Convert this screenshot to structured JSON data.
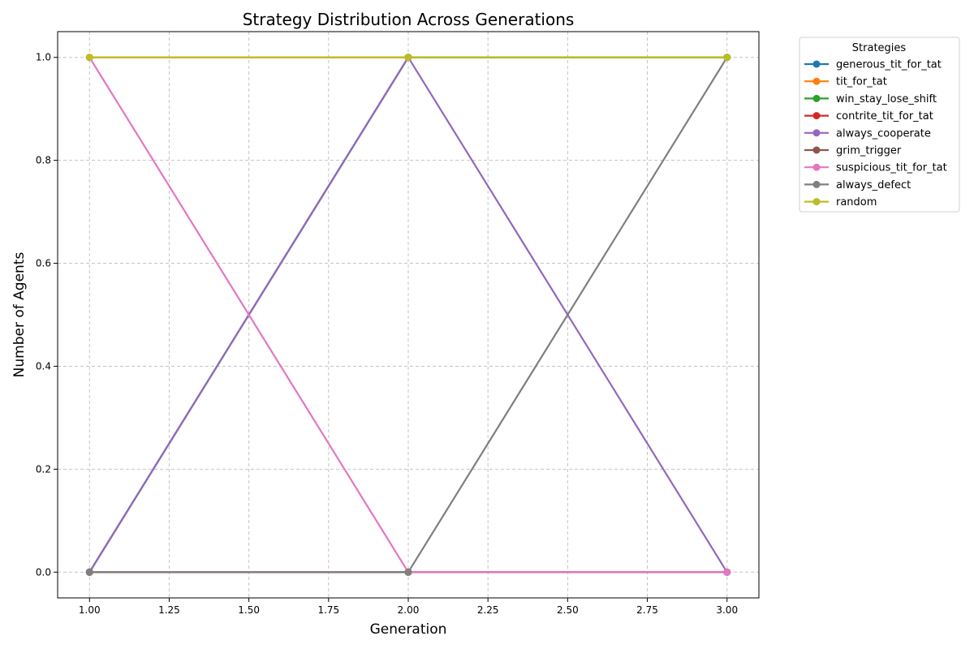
{
  "chart_data": {
    "type": "line",
    "title": "Strategy Distribution Across Generations",
    "xlabel": "Generation",
    "ylabel": "Number of Agents",
    "xlim": [
      0.9,
      3.1
    ],
    "ylim": [
      -0.05,
      1.05
    ],
    "x_ticks": [
      "1.00",
      "1.25",
      "1.50",
      "1.75",
      "2.00",
      "2.25",
      "2.50",
      "2.75",
      "3.00"
    ],
    "y_ticks": [
      "0.0",
      "0.2",
      "0.4",
      "0.6",
      "0.8",
      "1.0"
    ],
    "grid": true,
    "legend": {
      "title": "Strategies",
      "placement": "outside-right"
    },
    "x": [
      1,
      2,
      3
    ],
    "series": [
      {
        "name": "generous_tit_for_tat",
        "color": "#1f77b4",
        "values": [
          0,
          1,
          1
        ]
      },
      {
        "name": "tit_for_tat",
        "color": "#ff7f0e",
        "values": [
          1,
          1,
          1
        ]
      },
      {
        "name": "win_stay_lose_shift",
        "color": "#2ca02c",
        "values": [
          0,
          1,
          1
        ]
      },
      {
        "name": "contrite_tit_for_tat",
        "color": "#d62728",
        "values": [
          0,
          0,
          0
        ]
      },
      {
        "name": "always_cooperate",
        "color": "#9467bd",
        "values": [
          0,
          1,
          0
        ]
      },
      {
        "name": "grim_trigger",
        "color": "#8c564b",
        "values": [
          0,
          0,
          0
        ]
      },
      {
        "name": "suspicious_tit_for_tat",
        "color": "#e377c2",
        "values": [
          1,
          0,
          0
        ]
      },
      {
        "name": "always_defect",
        "color": "#7f7f7f",
        "values": [
          0,
          0,
          1
        ]
      },
      {
        "name": "random",
        "color": "#bcbd22",
        "values": [
          1,
          1,
          1
        ]
      }
    ]
  }
}
